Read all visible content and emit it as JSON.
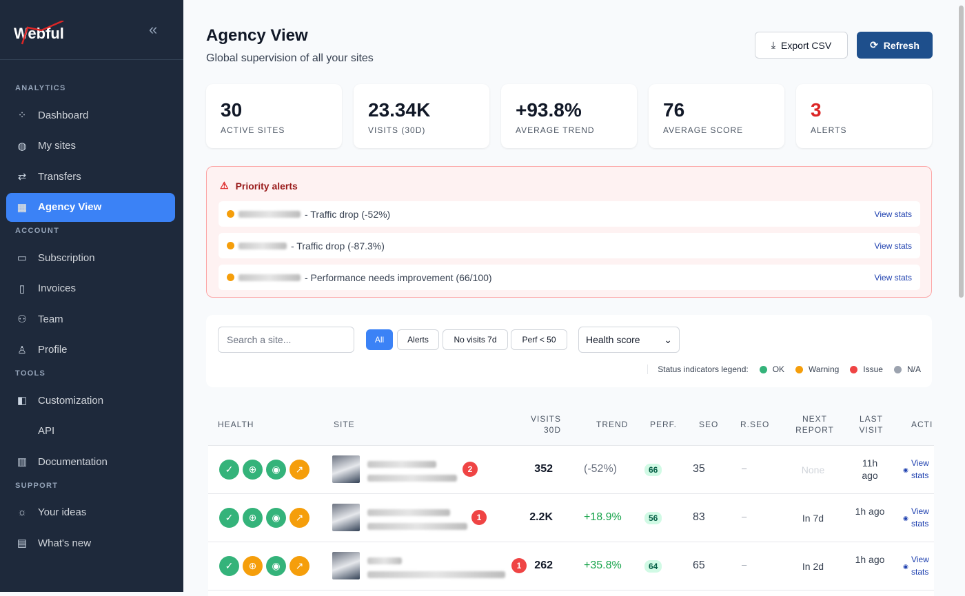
{
  "brand": "Webful",
  "sidebar": {
    "sections": [
      {
        "title": "ANALYTICS",
        "items": [
          {
            "label": "Dashboard",
            "icon": "grid-icon"
          },
          {
            "label": "My sites",
            "icon": "globe-icon"
          },
          {
            "label": "Transfers",
            "icon": "arrows-icon"
          },
          {
            "label": "Agency View",
            "icon": "building-icon",
            "active": true
          }
        ]
      },
      {
        "title": "ACCOUNT",
        "items": [
          {
            "label": "Subscription",
            "icon": "card-icon"
          },
          {
            "label": "Invoices",
            "icon": "document-icon"
          },
          {
            "label": "Team",
            "icon": "users-icon"
          },
          {
            "label": "Profile",
            "icon": "user-icon"
          }
        ]
      },
      {
        "title": "TOOLS",
        "items": [
          {
            "label": "Customization",
            "icon": "palette-icon"
          },
          {
            "label": "API",
            "icon": "code-icon"
          },
          {
            "label": "Documentation",
            "icon": "book-icon"
          }
        ]
      },
      {
        "title": "SUPPORT",
        "items": [
          {
            "label": "Your ideas",
            "icon": "bulb-icon"
          },
          {
            "label": "What's new",
            "icon": "message-icon"
          }
        ]
      }
    ]
  },
  "header": {
    "title": "Agency View",
    "subtitle": "Global supervision of all your sites",
    "export": "Export CSV",
    "refresh": "Refresh"
  },
  "stats": [
    {
      "value": "30",
      "label": "ACTIVE SITES"
    },
    {
      "value": "23.34K",
      "label": "VISITS (30D)"
    },
    {
      "value": "+93.8%",
      "label": "AVERAGE TREND"
    },
    {
      "value": "76",
      "label": "AVERAGE SCORE"
    },
    {
      "value": "3",
      "label": "ALERTS"
    }
  ],
  "alerts": {
    "title": "Priority alerts",
    "items": [
      {
        "text": "- Traffic drop (-52%)",
        "link": "View stats"
      },
      {
        "text": "- Traffic drop (-87.3%)",
        "link": "View stats"
      },
      {
        "text": "- Performance needs improvement (66/100)",
        "link": "View stats"
      }
    ]
  },
  "filters": {
    "search_placeholder": "Search a site...",
    "buttons": [
      "All",
      "Alerts",
      "No visits 7d",
      "Perf < 50"
    ],
    "sort": "Health score",
    "legend_label": "Status indicators legend:",
    "legend": [
      {
        "label": "OK",
        "color": "#34b37a"
      },
      {
        "label": "Warning",
        "color": "#f59e0b"
      },
      {
        "label": "Issue",
        "color": "#ef4444"
      },
      {
        "label": "N/A",
        "color": "#9ca3af"
      }
    ]
  },
  "table": {
    "headers": [
      "HEALTH",
      "SITE",
      "VISITS 30D",
      "TREND",
      "PERF.",
      "SEO",
      "R.SEO",
      "NEXT REPORT",
      "LAST VISIT",
      "ACTI"
    ],
    "rows": [
      {
        "health": [
          "ok",
          "ok",
          "ok",
          "warning"
        ],
        "badge": "2",
        "visits": "352",
        "trend": "(-52%)",
        "perf": "66",
        "seo": "35",
        "rseo": "–",
        "next": "None",
        "last": "11h ago",
        "action": "View stats"
      },
      {
        "health": [
          "ok",
          "ok",
          "ok",
          "warning"
        ],
        "badge": "1",
        "visits": "2.2K",
        "trend": "+18.9%",
        "perf": "56",
        "seo": "83",
        "rseo": "–",
        "next": "In 7d",
        "last": "1h ago",
        "action": "View stats"
      },
      {
        "health": [
          "ok",
          "warning",
          "ok",
          "warning"
        ],
        "badge": "1",
        "visits": "262",
        "trend": "+35.8%",
        "perf": "64",
        "seo": "65",
        "rseo": "–",
        "next": "In 2d",
        "last": "1h ago",
        "action": "View stats"
      }
    ]
  }
}
